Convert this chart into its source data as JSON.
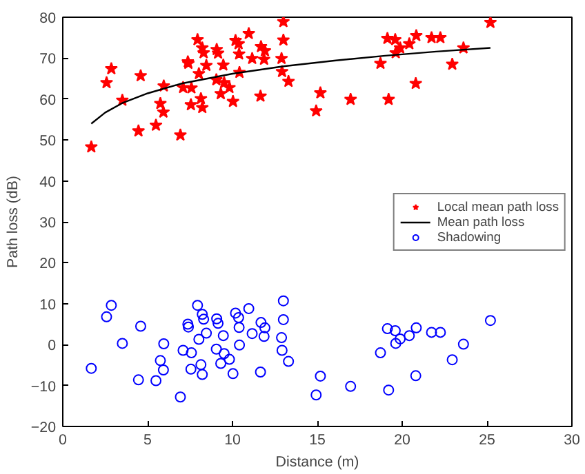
{
  "chart_data": {
    "type": "scatter",
    "xlabel": "Distance (m)",
    "ylabel": "Path loss (dB)",
    "xlim": [
      0,
      30
    ],
    "ylim": [
      -20,
      80
    ],
    "xticks": [
      0,
      5,
      10,
      15,
      20,
      25,
      30
    ],
    "yticks": [
      -20,
      -10,
      0,
      10,
      20,
      30,
      40,
      50,
      60,
      70,
      80
    ],
    "grid": false,
    "legend": "right",
    "series": [
      {
        "name": "Local mean path loss",
        "marker": "star",
        "color": "#ff0000",
        "x": [
          1.68,
          2.58,
          2.86,
          3.51,
          4.46,
          4.59,
          5.49,
          5.75,
          5.93,
          5.95,
          6.93,
          7.09,
          7.37,
          7.4,
          7.55,
          7.58,
          7.94,
          8.02,
          8.14,
          8.22,
          8.22,
          8.3,
          8.46,
          9.05,
          9.07,
          9.15,
          9.31,
          9.46,
          9.51,
          9.82,
          10.03,
          10.18,
          10.36,
          10.39,
          10.41,
          10.96,
          11.16,
          11.65,
          11.68,
          11.86,
          11.91,
          12.89,
          12.92,
          13.0,
          13.0,
          13.3,
          14.93,
          15.18,
          16.96,
          18.72,
          19.13,
          19.2,
          19.59,
          19.62,
          19.88,
          20.42,
          20.8,
          20.83,
          21.73,
          22.25,
          22.95,
          23.61,
          25.2
        ],
        "values": [
          48.3,
          64.0,
          67.4,
          59.7,
          52.2,
          65.7,
          53.6,
          58.9,
          56.8,
          63.2,
          51.2,
          62.8,
          69.1,
          68.7,
          58.6,
          62.7,
          74.5,
          66.2,
          60.1,
          72.5,
          57.9,
          71.3,
          68.2,
          64.7,
          72.1,
          71.2,
          61.3,
          68.3,
          64.0,
          62.8,
          59.4,
          74.3,
          73.5,
          71.0,
          66.5,
          76.0,
          69.9,
          60.7,
          72.8,
          69.7,
          71.8,
          69.9,
          66.7,
          78.9,
          74.4,
          64.3,
          57.1,
          61.5,
          59.9,
          68.7,
          74.8,
          59.9,
          74.5,
          71.3,
          72.5,
          73.5,
          63.8,
          75.5,
          75.0,
          75.0,
          68.5,
          72.5,
          78.7
        ]
      },
      {
        "name": "Mean path loss",
        "type": "line",
        "marker": "none",
        "line_style": "solid",
        "color": "#000000",
        "x": [
          1.68,
          2.5,
          3.5,
          5,
          7,
          10,
          13,
          16,
          19,
          22,
          25.2
        ],
        "values": [
          54.0,
          56.7,
          59.0,
          61.4,
          63.8,
          66.2,
          68.0,
          69.4,
          70.6,
          71.6,
          72.5
        ]
      },
      {
        "name": "Shadowing",
        "marker": "circle",
        "color": "#0000ff",
        "x": [
          1.68,
          2.58,
          2.86,
          3.51,
          4.46,
          4.59,
          5.49,
          5.75,
          5.93,
          5.95,
          6.93,
          7.09,
          7.37,
          7.4,
          7.55,
          7.58,
          7.94,
          8.02,
          8.14,
          8.22,
          8.22,
          8.3,
          8.46,
          9.05,
          9.07,
          9.15,
          9.31,
          9.46,
          9.51,
          9.82,
          10.03,
          10.18,
          10.36,
          10.39,
          10.41,
          10.96,
          11.16,
          11.65,
          11.68,
          11.86,
          11.91,
          12.89,
          12.92,
          13.0,
          13.0,
          13.3,
          14.93,
          15.18,
          16.96,
          18.72,
          19.13,
          19.2,
          19.59,
          19.62,
          19.88,
          20.42,
          20.8,
          20.83,
          21.73,
          22.25,
          22.95,
          23.61,
          25.2
        ],
        "values": [
          -5.8,
          6.8,
          9.6,
          0.3,
          -8.6,
          4.5,
          -8.8,
          -3.9,
          -6.2,
          0.2,
          -12.8,
          -1.4,
          5.0,
          4.3,
          -6.0,
          -2.0,
          9.6,
          1.3,
          -4.9,
          7.4,
          -7.3,
          6.2,
          2.8,
          -1.1,
          6.3,
          5.2,
          -4.6,
          2.2,
          -2.2,
          -3.6,
          -7.1,
          7.7,
          6.6,
          4.2,
          -0.1,
          8.8,
          2.7,
          -6.7,
          5.4,
          2.0,
          4.1,
          1.7,
          -1.4,
          10.7,
          6.1,
          -4.1,
          -12.3,
          -7.7,
          -10.2,
          -2.0,
          3.9,
          -11.1,
          3.4,
          0.3,
          1.4,
          2.2,
          -7.6,
          4.1,
          3.0,
          3.0,
          -3.7,
          0.1,
          5.9
        ]
      }
    ]
  }
}
